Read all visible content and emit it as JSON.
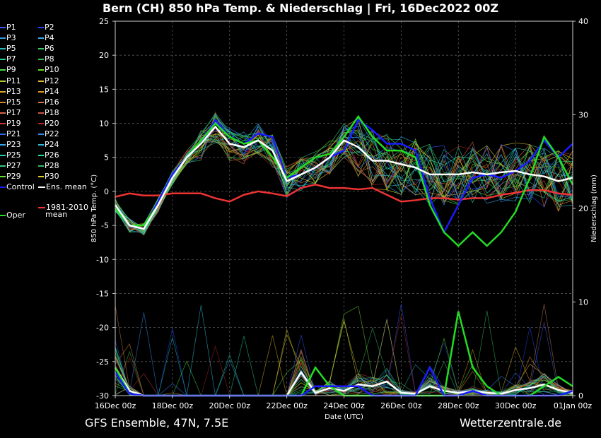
{
  "header": {
    "title": "Bern  (CH)  850 hPa Temp. & Niederschlag | Fri, 16Dec2022 00Z"
  },
  "footer": {
    "left": "GFS Ensemble, 47N, 7.5E",
    "right": "Wetterzentrale.de"
  },
  "colors": {
    "control": "#1a1aff",
    "oper": "#22dd22",
    "ens_mean": "#ffffff",
    "climate": "#ee3333",
    "grid": "#555555"
  },
  "legend": {
    "members": [
      {
        "label": "P1",
        "color": "#3355ff"
      },
      {
        "label": "P2",
        "color": "#2244ee"
      },
      {
        "label": "P3",
        "color": "#3399dd"
      },
      {
        "label": "P4",
        "color": "#33aadd"
      },
      {
        "label": "P5",
        "color": "#22bbbb"
      },
      {
        "label": "P6",
        "color": "#33cc66"
      },
      {
        "label": "P7",
        "color": "#22cc99"
      },
      {
        "label": "P8",
        "color": "#33bb55"
      },
      {
        "label": "P9",
        "color": "#44dd44"
      },
      {
        "label": "P10",
        "color": "#66dd22"
      },
      {
        "label": "P11",
        "color": "#bbcc33"
      },
      {
        "label": "P12",
        "color": "#ddbb33"
      },
      {
        "label": "P13",
        "color": "#ddaa22"
      },
      {
        "label": "P14",
        "color": "#dd9922"
      },
      {
        "label": "P15",
        "color": "#cc8833"
      },
      {
        "label": "P16",
        "color": "#cc7744"
      },
      {
        "label": "P17",
        "color": "#dd6644"
      },
      {
        "label": "P18",
        "color": "#cc5544"
      },
      {
        "label": "P19",
        "color": "#cc3333"
      },
      {
        "label": "P20",
        "color": "#aa2222"
      },
      {
        "label": "P21",
        "color": "#3366ee"
      },
      {
        "label": "P22",
        "color": "#3388ee"
      },
      {
        "label": "P23",
        "color": "#33aaee"
      },
      {
        "label": "P24",
        "color": "#33bbdd"
      },
      {
        "label": "P25",
        "color": "#22ccaa"
      },
      {
        "label": "P26",
        "color": "#22ddaa"
      },
      {
        "label": "P27",
        "color": "#33cc77"
      },
      {
        "label": "P28",
        "color": "#33bb66"
      },
      {
        "label": "P29",
        "color": "#66dd33"
      },
      {
        "label": "P30",
        "color": "#ddcc22"
      }
    ],
    "control": "Control",
    "ens_mean": "Ens. mean",
    "climate_line1": "1981-2010",
    "climate_line2": "mean",
    "oper": "Oper"
  },
  "chart_data": {
    "type": "line",
    "title": "Bern  (CH)  850 hPa Temp. & Niederschlag | Fri, 16Dec2022 00Z",
    "xlabel": "Date (UTC)",
    "ylabel": "850 hPa Temp. (°C)",
    "y2label": "Niederschlag (mm)",
    "ylim": [
      -30,
      25
    ],
    "y2lim": [
      0,
      40
    ],
    "yticks": [
      25,
      20,
      15,
      10,
      5,
      0,
      -5,
      -10,
      -15,
      -20,
      -25,
      -30
    ],
    "y2ticks": [
      40,
      30,
      20,
      10,
      0
    ],
    "xlim": [
      0,
      384
    ],
    "xtick_hours": [
      0,
      48,
      96,
      144,
      192,
      240,
      288,
      336,
      384
    ],
    "xtick_labels": [
      "16Dec 00z",
      "18Dec 00z",
      "20Dec 00z",
      "22Dec 00z",
      "24Dec 00z",
      "26Dec 00z",
      "28Dec 00z",
      "30Dec 00z",
      "01Jan 00z"
    ],
    "grid": true,
    "series": [
      {
        "name": "Oper",
        "axis": "temp",
        "color": "#22dd22",
        "x": [
          0,
          12,
          24,
          36,
          48,
          60,
          72,
          84,
          96,
          108,
          120,
          132,
          144,
          156,
          168,
          180,
          192,
          204,
          216,
          228,
          240,
          252,
          264,
          276,
          288,
          300,
          312,
          324,
          336,
          348,
          360,
          372,
          384
        ],
        "values": [
          -2.5,
          -5,
          -5,
          -2,
          2,
          5,
          7.5,
          10,
          8,
          7,
          7.5,
          5,
          2,
          3.5,
          5,
          5.5,
          8,
          11,
          8,
          6,
          6,
          5,
          -2,
          -6,
          -8,
          -6,
          -8,
          -6,
          -3,
          2,
          8,
          5,
          1
        ]
      },
      {
        "name": "Control",
        "axis": "temp",
        "color": "#1a1aff",
        "x": [
          0,
          12,
          24,
          36,
          48,
          60,
          72,
          84,
          96,
          108,
          120,
          132,
          144,
          156,
          168,
          180,
          192,
          204,
          216,
          228,
          240,
          252,
          264,
          276,
          288,
          300,
          312,
          324,
          336,
          348,
          360,
          372,
          384
        ],
        "values": [
          -2,
          -5,
          -5.5,
          -1.5,
          2.5,
          5,
          7,
          10.5,
          8,
          7,
          8.5,
          8,
          2,
          2.5,
          3.5,
          5,
          6,
          10.5,
          9,
          7,
          7,
          6,
          -1,
          -6,
          -2,
          2,
          2.5,
          2,
          3,
          4.5,
          7.5,
          5,
          7
        ]
      },
      {
        "name": "Ens. mean",
        "axis": "temp",
        "color": "#ffffff",
        "x": [
          0,
          12,
          24,
          36,
          48,
          60,
          72,
          84,
          96,
          108,
          120,
          132,
          144,
          156,
          168,
          180,
          192,
          204,
          216,
          228,
          240,
          252,
          264,
          276,
          288,
          300,
          312,
          324,
          336,
          348,
          360,
          372,
          384
        ],
        "values": [
          -2,
          -5,
          -5.5,
          -2,
          2,
          5,
          7,
          9.5,
          7,
          6.5,
          7.5,
          6,
          1.5,
          2.5,
          3.5,
          5,
          7.5,
          6.5,
          4.5,
          4.5,
          4,
          3.5,
          2.5,
          2.5,
          2.5,
          2.8,
          2.5,
          2.8,
          3,
          2.5,
          2.2,
          1.5,
          2
        ]
      },
      {
        "name": "1981-2010 mean",
        "axis": "temp",
        "color": "#ee3333",
        "x": [
          0,
          12,
          24,
          36,
          48,
          60,
          72,
          84,
          96,
          108,
          120,
          132,
          144,
          156,
          168,
          180,
          192,
          204,
          216,
          228,
          240,
          252,
          264,
          276,
          288,
          300,
          312,
          324,
          336,
          348,
          360,
          372,
          384
        ],
        "values": [
          -0.8,
          -0.3,
          -0.6,
          -0.6,
          -0.3,
          -0.3,
          -0.3,
          -1,
          -1.5,
          -0.5,
          0,
          -0.3,
          -0.7,
          0.5,
          1,
          0.5,
          0.5,
          0.3,
          0.5,
          -0.5,
          -1.5,
          -1.3,
          -1,
          -1,
          -1.2,
          -1,
          -1,
          -0.5,
          -0.2,
          0.2,
          0.2,
          -0.3,
          -0.5
        ]
      },
      {
        "name": "Oper precip",
        "axis": "precip",
        "color": "#22dd22",
        "x": [
          0,
          12,
          24,
          36,
          48,
          60,
          72,
          84,
          96,
          108,
          120,
          132,
          144,
          156,
          168,
          180,
          192,
          204,
          216,
          228,
          240,
          252,
          264,
          276,
          288,
          300,
          312,
          324,
          336,
          348,
          360,
          372,
          384
        ],
        "values": [
          3,
          0.2,
          0,
          0,
          0,
          0,
          0,
          0,
          0,
          0,
          0,
          0,
          0,
          0,
          3,
          1,
          0,
          0,
          0,
          0,
          0,
          0,
          0,
          0,
          9,
          3,
          1,
          0,
          0,
          0,
          1,
          2,
          1
        ]
      },
      {
        "name": "Control precip",
        "axis": "precip",
        "color": "#1a1aff",
        "x": [
          0,
          12,
          24,
          36,
          48,
          60,
          72,
          84,
          96,
          108,
          120,
          132,
          144,
          156,
          168,
          180,
          192,
          204,
          216,
          228,
          240,
          252,
          264,
          276,
          288,
          300,
          312,
          324,
          336,
          348,
          360,
          372,
          384
        ],
        "values": [
          2.5,
          0.2,
          0,
          0,
          0,
          0,
          0,
          0,
          0,
          0,
          0,
          0,
          0,
          0,
          1,
          1,
          1,
          1,
          0,
          0,
          0,
          0,
          3,
          0,
          0,
          0.5,
          0,
          0,
          0,
          0,
          0,
          0,
          0.5
        ]
      },
      {
        "name": "Ens. mean precip",
        "axis": "precip",
        "color": "#ffffff",
        "x": [
          0,
          12,
          24,
          36,
          48,
          60,
          72,
          84,
          96,
          108,
          120,
          132,
          144,
          156,
          168,
          180,
          192,
          204,
          216,
          228,
          240,
          252,
          264,
          276,
          288,
          300,
          312,
          324,
          336,
          348,
          360,
          372,
          384
        ],
        "values": [
          3,
          0.5,
          0,
          0,
          0,
          0,
          0,
          0,
          0,
          0,
          0,
          0,
          0,
          2.5,
          0.3,
          0.8,
          0.5,
          1.2,
          1,
          1.5,
          0.3,
          0.2,
          1,
          0.5,
          0.3,
          0.5,
          0.3,
          0.2,
          0.6,
          0.8,
          1.2,
          0.6,
          0.3
        ]
      }
    ]
  }
}
